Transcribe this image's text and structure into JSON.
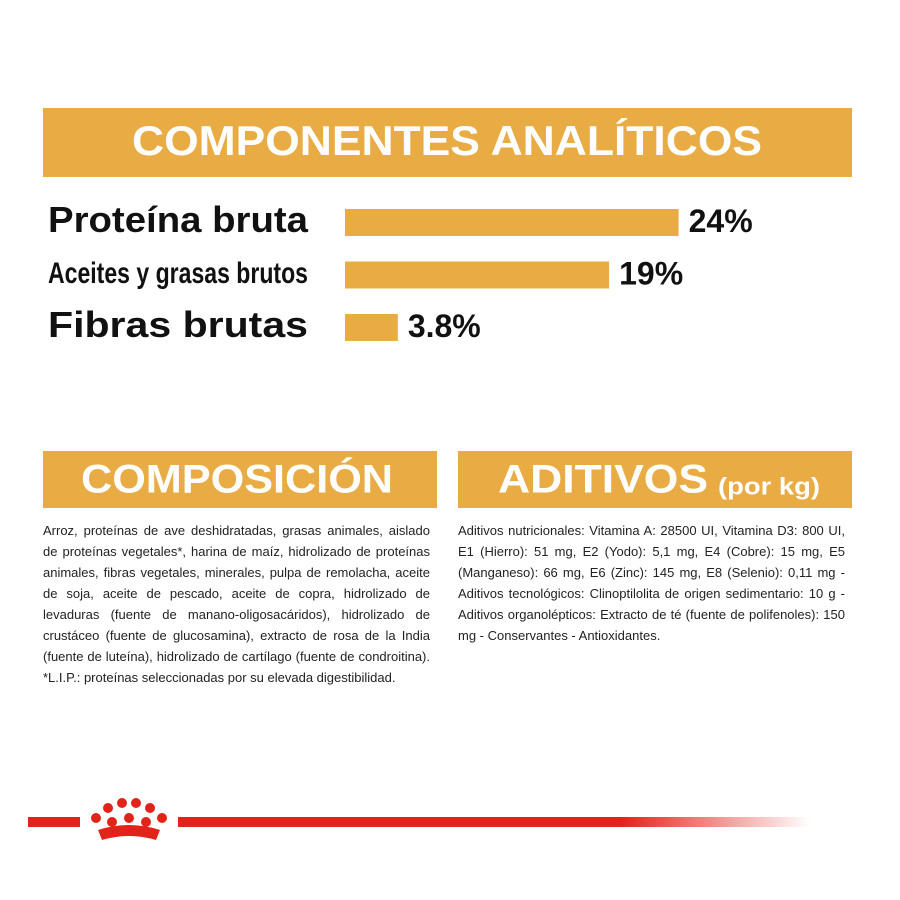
{
  "chart_data": {
    "type": "bar",
    "orientation": "horizontal",
    "title": "COMPONENTES ANALÍTICOS",
    "categories": [
      "Proteína bruta",
      "Aceites y grasas brutos",
      "Fibras brutas"
    ],
    "values": [
      24,
      19,
      3.8
    ],
    "value_labels": [
      "24%",
      "19%",
      "3.8%"
    ],
    "color": "#e9ac45"
  },
  "composicion": {
    "title": "COMPOSICIÓN",
    "text": "Arroz, proteínas de ave deshidratadas, grasas animales, aislado de proteínas vegetales*, harina de maíz, hidrolizado de proteínas animales, fibras vegetales, minerales, pulpa de remolacha, aceite de soja, aceite de pescado, aceite de copra, hidrolizado de levaduras (fuente de manano-oligosacáridos), hidrolizado de crustáceo (fuente de glucosamina), extracto de rosa de la India (fuente de luteína), hidrolizado de cartílago (fuente de condroitina). *L.I.P.: proteínas seleccionadas por su elevada digestibilidad."
  },
  "aditivos": {
    "title": "ADITIVOS",
    "subtitle": "(por kg)",
    "text": "Aditivos nutricionales: Vitamina A: 28500 UI, Vitamina D3: 800 UI, E1 (Hierro): 51 mg, E2 (Yodo): 5,1 mg, E4 (Cobre): 15 mg, E5 (Manganeso): 66 mg, E6 (Zinc): 145 mg, E8 (Selenio): 0,11 mg - Aditivos tecnológicos: Clinoptilolita de origen sedimentario: 10 g - Aditivos organolépticos: Extracto de té (fuente de polifenoles): 150 mg - Conservantes - Antioxidantes."
  }
}
